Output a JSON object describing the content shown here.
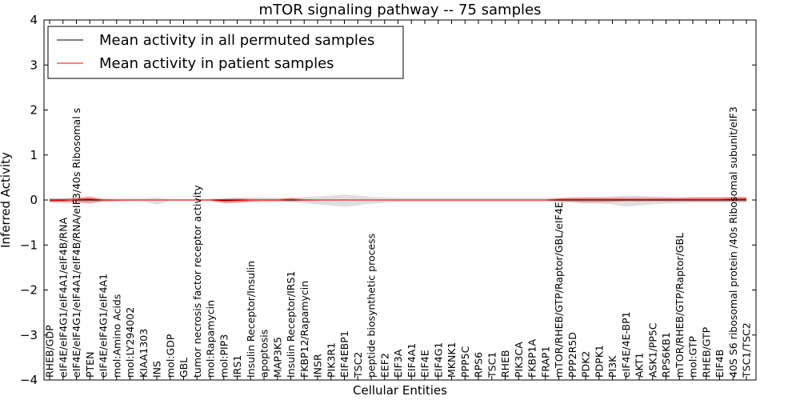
{
  "chart_data": {
    "type": "line",
    "title": "mTOR signaling pathway -- 75 samples",
    "xlabel": "Cellular Entities",
    "ylabel": "Inferred Activity",
    "ylim": [
      -4,
      4
    ],
    "yticks": [
      -4,
      -3,
      -2,
      -1,
      0,
      1,
      2,
      3,
      4
    ],
    "ytick_labels": [
      "−4",
      "−3",
      "−2",
      "−1",
      "0",
      "1",
      "2",
      "3",
      "4"
    ],
    "legend_position": "top-left",
    "categories": [
      "RHEB/GDP",
      "eIF4E/eIF4G1/eIF4A1/eIF4B/RNA",
      "eIF4E/eIF4G1/eIF4A1/eIF4B/RNA/eIF3/40s Ribosomal s",
      "PTEN",
      "eIF4E/eIF4G1/eIF4A1",
      "mol:Amino Acids",
      "mol:LY294002",
      "KIAA1303",
      "INS",
      "mol:GDP",
      "GBL",
      "tumor necrosis factor receptor activity",
      "mol:Rapamycin",
      "mol:PIP3",
      "IRS1",
      "Insulin Receptor/Insulin",
      "apoptosis",
      "MAP3K5",
      "Insulin Receptor/IRS1",
      "FKBP12/Rapamycin",
      "INSR",
      "PIK3R1",
      "EIF4EBP1",
      "TSC2",
      "peptide biosynthetic process",
      "EEF2",
      "EIF3A",
      "EIF4A1",
      "EIF4E",
      "EIF4G1",
      "MKNK1",
      "PPP5C",
      "RPS6",
      "TSC1",
      "RHEB",
      "PIK3CA",
      "FKBP1A",
      "FRAP1",
      "mTOR/RHEB/GTP/Raptor/GBL/eIF4E",
      "PPP2R5D",
      "PDK2",
      "PDPK1",
      "PI3K",
      "eIF4E/4E-BP1",
      "AKT1",
      "ASK1/PP5C",
      "RPS6KB1",
      "mTOR/RHEB/GTP/Raptor/GBL",
      "mol:GTP",
      "RHEB/GTP",
      "EIF4B",
      "40S S6 ribosomal protein /40s Ribosomal subunit/eIF3",
      "TSC1/TSC2"
    ],
    "series": [
      {
        "name": "Mean activity in all permuted samples",
        "color": "#000000",
        "values": [
          0,
          0,
          0,
          0,
          0,
          0,
          0,
          0,
          0,
          0,
          0,
          0,
          0,
          0,
          0,
          0,
          0,
          0,
          0,
          0,
          0,
          0,
          0,
          0,
          0,
          0,
          0,
          0,
          0,
          0,
          0,
          0,
          0,
          0,
          0,
          0,
          0,
          0,
          0,
          0,
          0,
          0,
          0,
          0,
          0,
          0,
          0,
          0,
          0,
          0,
          0,
          0,
          0
        ],
        "band_lower": [
          -0.05,
          -0.05,
          -0.05,
          -0.04,
          -0.04,
          -0.03,
          -0.03,
          -0.03,
          -0.1,
          -0.02,
          -0.02,
          -0.02,
          -0.03,
          -0.05,
          -0.06,
          -0.06,
          -0.06,
          -0.05,
          -0.05,
          -0.07,
          -0.1,
          -0.12,
          -0.15,
          -0.12,
          -0.08,
          -0.06,
          -0.05,
          -0.05,
          -0.05,
          -0.05,
          -0.05,
          -0.05,
          -0.05,
          -0.05,
          -0.05,
          -0.05,
          -0.05,
          -0.05,
          -0.05,
          -0.06,
          -0.08,
          -0.08,
          -0.1,
          -0.15,
          -0.12,
          -0.1,
          -0.08,
          -0.07,
          -0.06,
          -0.06,
          -0.06,
          -0.06,
          -0.06
        ],
        "band_upper": [
          0.05,
          0.05,
          0.05,
          0.04,
          0.04,
          0.03,
          0.03,
          0.03,
          0.06,
          0.02,
          0.02,
          0.02,
          0.03,
          0.05,
          0.06,
          0.06,
          0.06,
          0.05,
          0.05,
          0.07,
          0.08,
          0.1,
          0.12,
          0.1,
          0.07,
          0.06,
          0.05,
          0.05,
          0.05,
          0.05,
          0.05,
          0.05,
          0.05,
          0.05,
          0.05,
          0.05,
          0.05,
          0.05,
          0.05,
          0.06,
          0.07,
          0.07,
          0.08,
          0.1,
          0.09,
          0.08,
          0.07,
          0.06,
          0.06,
          0.06,
          0.06,
          0.06,
          0.06
        ]
      },
      {
        "name": "Mean activity in patient samples",
        "color": "#ff0000",
        "values": [
          -0.01,
          -0.01,
          0.01,
          0.02,
          0,
          0,
          0,
          0,
          0,
          0,
          0,
          0,
          0,
          -0.02,
          -0.01,
          0,
          0,
          0,
          0.01,
          0,
          0,
          0,
          0,
          0,
          0,
          0,
          0,
          0,
          0,
          0,
          0,
          0,
          0,
          0,
          0,
          0,
          0,
          0,
          0.01,
          0.01,
          0.01,
          0.01,
          0.01,
          0.01,
          0.01,
          0.01,
          0.01,
          0.01,
          0.01,
          0.01,
          0.01,
          0.02,
          0.02
        ],
        "band_lower": [
          -0.05,
          -0.05,
          -0.05,
          -0.08,
          -0.03,
          -0.02,
          -0.01,
          -0.01,
          -0.01,
          -0.01,
          -0.01,
          -0.01,
          -0.01,
          -0.07,
          -0.06,
          -0.03,
          -0.02,
          -0.02,
          -0.03,
          -0.02,
          -0.01,
          -0.01,
          -0.01,
          -0.01,
          -0.01,
          -0.01,
          -0.01,
          -0.01,
          -0.01,
          -0.01,
          -0.01,
          -0.01,
          -0.01,
          -0.01,
          -0.01,
          -0.01,
          -0.01,
          -0.01,
          -0.03,
          -0.04,
          -0.05,
          -0.05,
          -0.04,
          -0.03,
          -0.03,
          -0.03,
          -0.03,
          -0.03,
          -0.03,
          -0.03,
          -0.03,
          -0.03,
          -0.03
        ],
        "band_upper": [
          0.02,
          0.02,
          0.05,
          0.08,
          0.02,
          0.01,
          0.01,
          0.01,
          0.01,
          0.01,
          0.01,
          0.01,
          0.01,
          0.02,
          0.03,
          0.02,
          0.02,
          0.02,
          0.05,
          0.02,
          0.01,
          0.01,
          0.01,
          0.01,
          0.01,
          0.01,
          0.01,
          0.01,
          0.01,
          0.01,
          0.01,
          0.01,
          0.01,
          0.01,
          0.01,
          0.01,
          0.01,
          0.01,
          0.04,
          0.05,
          0.05,
          0.05,
          0.05,
          0.05,
          0.05,
          0.05,
          0.05,
          0.05,
          0.06,
          0.06,
          0.06,
          0.07,
          0.07
        ]
      }
    ]
  }
}
